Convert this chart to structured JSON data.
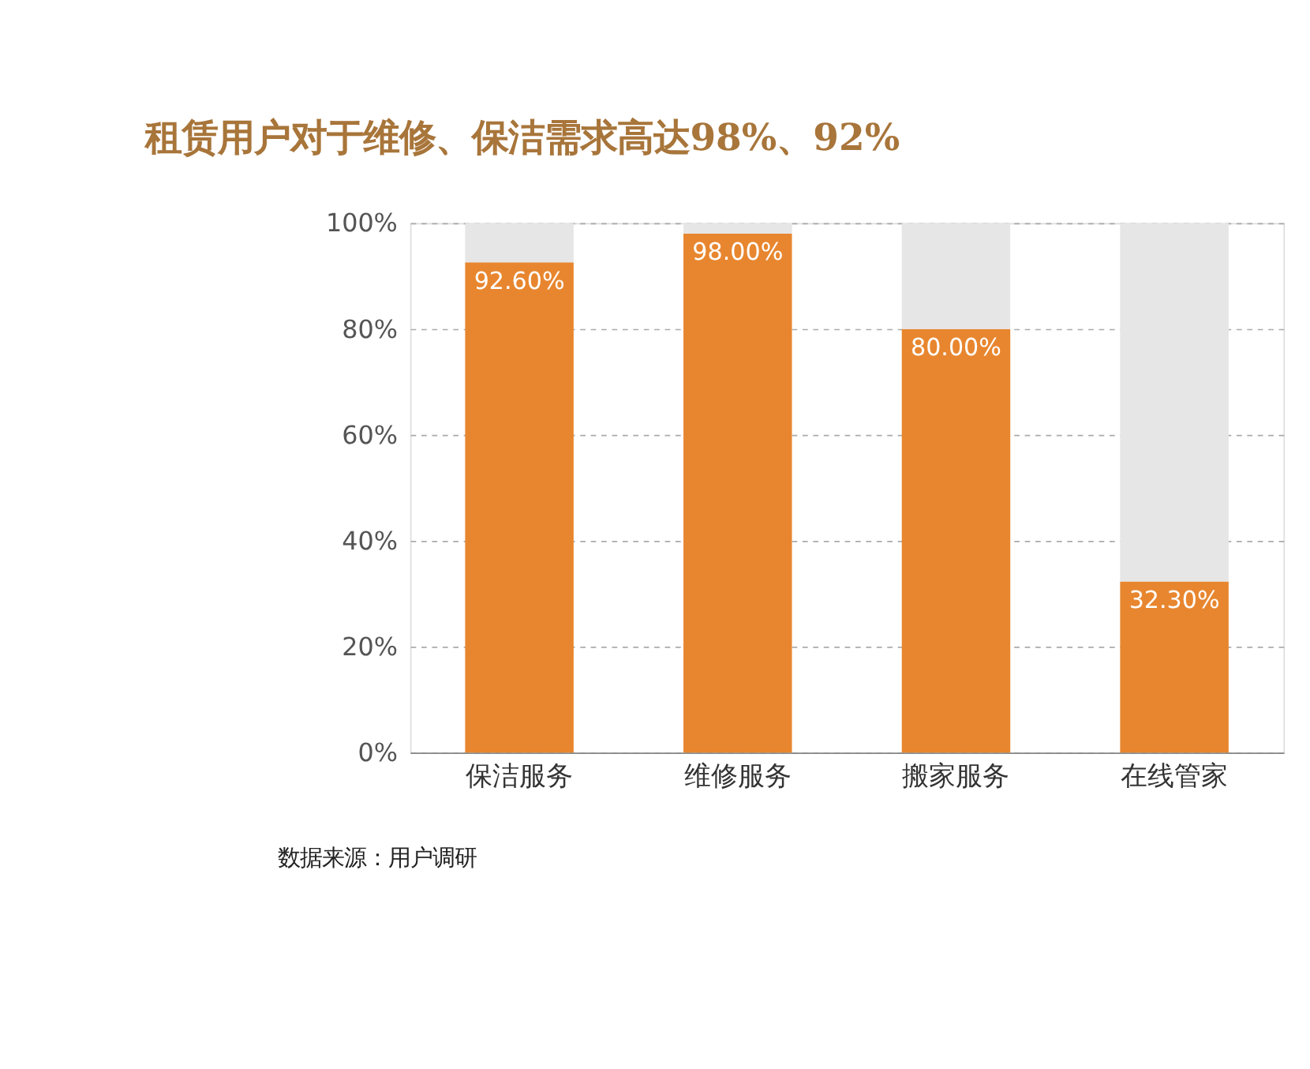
{
  "chart_data": {
    "type": "bar",
    "title": "租赁用户对于维修、保洁需求高达98%、92%",
    "categories": [
      "保洁服务",
      "维修服务",
      "搬家服务",
      "在线管家"
    ],
    "stacked": true,
    "series": [
      {
        "color": "#e8862f",
        "values": [
          92.6,
          98.0,
          80.0,
          32.3
        ],
        "value_labels": [
          "92.60%",
          "98.00%",
          "80.00%",
          "32.30%"
        ]
      },
      {
        "color": "#e6e6e6",
        "values": [
          7.4,
          2.0,
          20.0,
          67.7
        ]
      }
    ],
    "ylim": [
      0,
      100
    ],
    "yticks": [
      {
        "value": 0,
        "label": "0%"
      },
      {
        "value": 20,
        "label": "20%"
      },
      {
        "value": 40,
        "label": "40%"
      },
      {
        "value": 60,
        "label": "60%"
      },
      {
        "value": 80,
        "label": "80%"
      },
      {
        "value": 100,
        "label": "100%"
      }
    ],
    "grid": "y",
    "legend": false,
    "annotations": [
      "数据来源：用户调研"
    ]
  }
}
